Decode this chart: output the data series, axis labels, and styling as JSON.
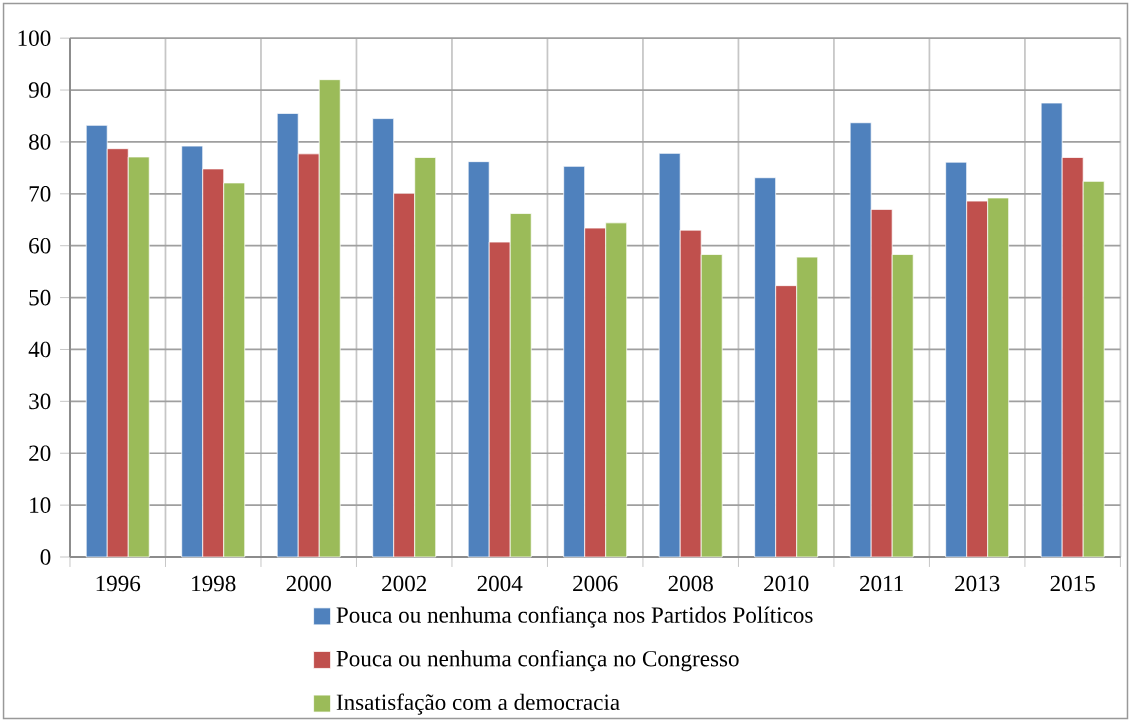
{
  "chart_data": {
    "type": "bar",
    "categories": [
      "1996",
      "1998",
      "2000",
      "2002",
      "2004",
      "2006",
      "2008",
      "2010",
      "2011",
      "2013",
      "2015"
    ],
    "series": [
      {
        "name": "Pouca ou nenhuma confiança nos Partidos Políticos",
        "color": "#4f81bd",
        "values": [
          83.2,
          79.2,
          85.5,
          84.5,
          76.2,
          75.3,
          77.8,
          73.1,
          83.7,
          76.1,
          87.5
        ]
      },
      {
        "name": "Pouca ou nenhuma confiança no Congresso",
        "color": "#c0504d",
        "values": [
          78.7,
          74.8,
          77.7,
          70.1,
          60.7,
          63.4,
          63.0,
          52.3,
          67.0,
          68.6,
          77.0
        ]
      },
      {
        "name": "Insatisfação com a democracia",
        "color": "#9bbb59",
        "values": [
          77.1,
          72.1,
          92.0,
          77.0,
          66.2,
          64.4,
          58.3,
          57.8,
          58.3,
          69.2,
          72.4
        ]
      }
    ],
    "ylim": [
      0,
      100
    ],
    "yticks": [
      0,
      10,
      20,
      30,
      40,
      50,
      60,
      70,
      80,
      90,
      100
    ],
    "grid": true,
    "legend": "bottom"
  }
}
